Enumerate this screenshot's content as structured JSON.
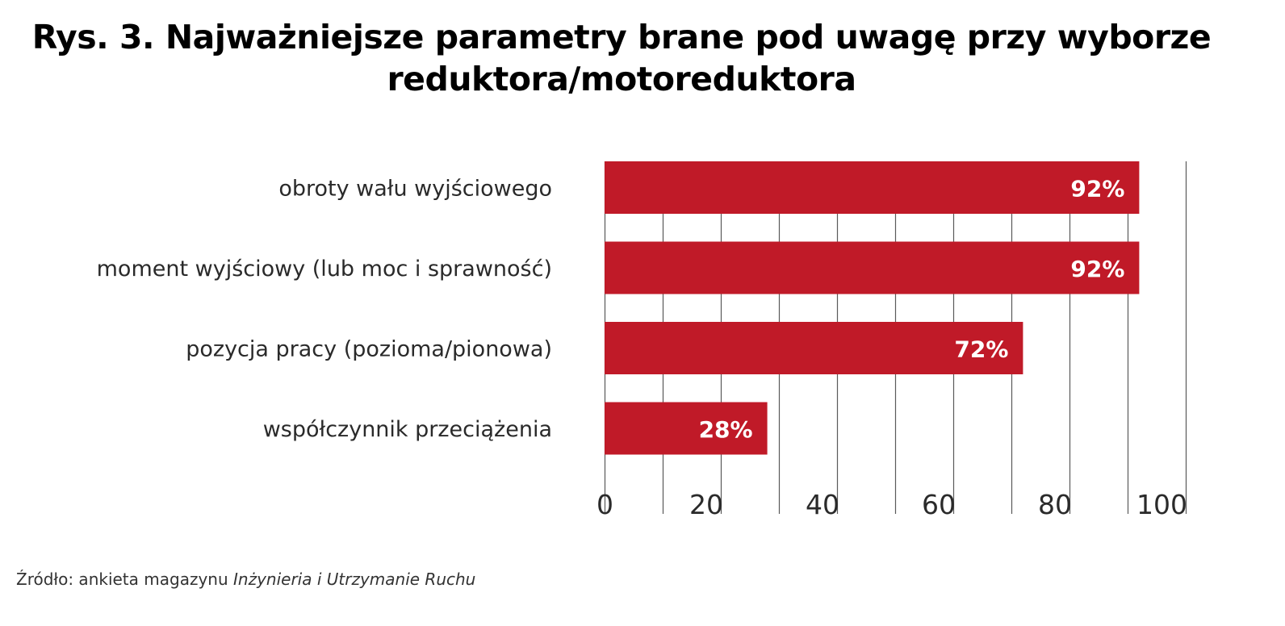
{
  "title": {
    "line1": "Rys. 3. Najważniejsze parametry brane pod uwagę przy wyborze",
    "line2": "reduktora/motoreduktora"
  },
  "chart_data": {
    "type": "bar",
    "orientation": "horizontal",
    "categories": [
      "obroty wału wyjściowego",
      "moment wyjściowy (lub moc i sprawność)",
      "pozycja pracy (pozioma/pionowa)",
      "współczynnik przeciążenia"
    ],
    "values": [
      92,
      92,
      72,
      28
    ],
    "data_labels": [
      "92%",
      "92%",
      "72%",
      "28%"
    ],
    "xlim": [
      0,
      100
    ],
    "xticks": [
      0,
      20,
      40,
      60,
      80,
      100
    ],
    "grid": true,
    "bar_color": "#c01a28",
    "label_color": "#ffffff"
  },
  "source": {
    "prefix": "Źródło: ankieta magazynu ",
    "publication": "Inżynieria i Utrzymanie Ruchu"
  }
}
